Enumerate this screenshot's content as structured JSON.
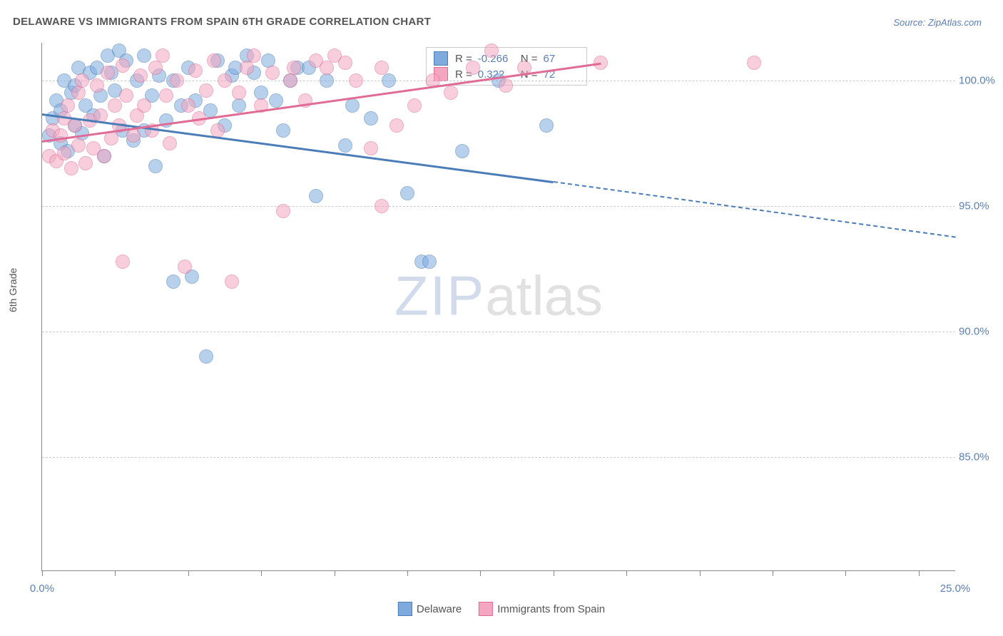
{
  "title": "DELAWARE VS IMMIGRANTS FROM SPAIN 6TH GRADE CORRELATION CHART",
  "source": "Source: ZipAtlas.com",
  "y_axis_label": "6th Grade",
  "watermark_zip": "ZIP",
  "watermark_atlas": "atlas",
  "chart": {
    "type": "scatter",
    "xlim": [
      0,
      25
    ],
    "ylim": [
      80.5,
      101.5
    ],
    "x_ticks": [
      0,
      2,
      4,
      6,
      8,
      10,
      12,
      14,
      16,
      18,
      20,
      22,
      24
    ],
    "x_tick_labels": {
      "0": "0.0%",
      "25": "25.0%"
    },
    "y_gridlines": [
      85,
      90,
      95,
      100
    ],
    "y_tick_labels": {
      "85": "85.0%",
      "90": "90.0%",
      "95": "95.0%",
      "100": "100.0%"
    },
    "grid_color": "#cccccc",
    "background_color": "#ffffff"
  },
  "series": [
    {
      "name": "Delaware",
      "label": "Delaware",
      "fill_color": "#7eaade",
      "stroke_color": "#4a7db8",
      "r_value": "-0.266",
      "n_value": "67",
      "trend": {
        "x1": 0,
        "y1": 98.7,
        "x2": 14,
        "y2": 96.0,
        "x2_dash": 25,
        "y2_dash": 93.8
      },
      "points": [
        [
          0.2,
          97.8
        ],
        [
          0.3,
          98.5
        ],
        [
          0.4,
          99.2
        ],
        [
          0.5,
          97.5
        ],
        [
          0.5,
          98.8
        ],
        [
          0.6,
          100.0
        ],
        [
          0.7,
          97.2
        ],
        [
          0.8,
          99.5
        ],
        [
          0.9,
          98.2
        ],
        [
          0.9,
          99.8
        ],
        [
          1.0,
          100.5
        ],
        [
          1.1,
          97.9
        ],
        [
          1.2,
          99.0
        ],
        [
          1.3,
          100.3
        ],
        [
          1.4,
          98.6
        ],
        [
          1.5,
          100.5
        ],
        [
          1.6,
          99.4
        ],
        [
          1.7,
          97.0
        ],
        [
          1.8,
          101.0
        ],
        [
          1.9,
          100.3
        ],
        [
          2.0,
          99.6
        ],
        [
          2.1,
          101.2
        ],
        [
          2.2,
          98.0
        ],
        [
          2.3,
          100.8
        ],
        [
          2.5,
          97.6
        ],
        [
          2.6,
          100.0
        ],
        [
          2.8,
          101.0
        ],
        [
          2.8,
          98.0
        ],
        [
          3.0,
          99.4
        ],
        [
          3.1,
          96.6
        ],
        [
          3.2,
          100.2
        ],
        [
          3.4,
          98.4
        ],
        [
          3.6,
          92.0
        ],
        [
          3.6,
          100.0
        ],
        [
          3.8,
          99.0
        ],
        [
          4.0,
          100.5
        ],
        [
          4.1,
          92.2
        ],
        [
          4.2,
          99.2
        ],
        [
          4.5,
          89.0
        ],
        [
          4.6,
          98.8
        ],
        [
          4.8,
          100.8
        ],
        [
          5.0,
          98.2
        ],
        [
          5.2,
          100.2
        ],
        [
          5.3,
          100.5
        ],
        [
          5.4,
          99.0
        ],
        [
          5.6,
          101.0
        ],
        [
          5.8,
          100.3
        ],
        [
          6.0,
          99.5
        ],
        [
          6.2,
          100.8
        ],
        [
          6.4,
          99.2
        ],
        [
          6.6,
          98.0
        ],
        [
          6.8,
          100.0
        ],
        [
          7.0,
          100.5
        ],
        [
          7.3,
          100.5
        ],
        [
          7.5,
          95.4
        ],
        [
          7.8,
          100.0
        ],
        [
          8.3,
          97.4
        ],
        [
          8.5,
          99.0
        ],
        [
          9.0,
          98.5
        ],
        [
          9.5,
          100.0
        ],
        [
          10.0,
          95.5
        ],
        [
          10.4,
          92.8
        ],
        [
          10.6,
          92.8
        ],
        [
          11.5,
          97.2
        ],
        [
          12.5,
          100.0
        ],
        [
          13.8,
          98.2
        ]
      ]
    },
    {
      "name": "Immigrants from Spain",
      "label": "Immigrants from Spain",
      "fill_color": "#f4a6c0",
      "stroke_color": "#e06b94",
      "r_value": "0.322",
      "n_value": "72",
      "trend": {
        "x1": 0,
        "y1": 97.6,
        "x2": 15.3,
        "y2": 100.7,
        "x2_dash": null,
        "y2_dash": null
      },
      "points": [
        [
          0.2,
          97.0
        ],
        [
          0.3,
          98.0
        ],
        [
          0.4,
          96.8
        ],
        [
          0.5,
          97.8
        ],
        [
          0.6,
          98.5
        ],
        [
          0.6,
          97.1
        ],
        [
          0.7,
          99.0
        ],
        [
          0.8,
          96.5
        ],
        [
          0.9,
          98.2
        ],
        [
          1.0,
          97.4
        ],
        [
          1.0,
          99.5
        ],
        [
          1.1,
          100.0
        ],
        [
          1.2,
          96.7
        ],
        [
          1.3,
          98.4
        ],
        [
          1.4,
          97.3
        ],
        [
          1.5,
          99.8
        ],
        [
          1.6,
          98.6
        ],
        [
          1.7,
          97.0
        ],
        [
          1.8,
          100.3
        ],
        [
          1.9,
          97.7
        ],
        [
          2.0,
          99.0
        ],
        [
          2.1,
          98.2
        ],
        [
          2.2,
          100.6
        ],
        [
          2.2,
          92.8
        ],
        [
          2.3,
          99.4
        ],
        [
          2.5,
          97.8
        ],
        [
          2.6,
          98.6
        ],
        [
          2.7,
          100.2
        ],
        [
          2.8,
          99.0
        ],
        [
          3.0,
          98.0
        ],
        [
          3.1,
          100.5
        ],
        [
          3.3,
          101.0
        ],
        [
          3.4,
          99.4
        ],
        [
          3.5,
          97.5
        ],
        [
          3.7,
          100.0
        ],
        [
          3.9,
          92.6
        ],
        [
          4.0,
          99.0
        ],
        [
          4.2,
          100.4
        ],
        [
          4.3,
          98.5
        ],
        [
          4.5,
          99.6
        ],
        [
          4.7,
          100.8
        ],
        [
          4.8,
          98.0
        ],
        [
          5.0,
          100.0
        ],
        [
          5.2,
          92.0
        ],
        [
          5.4,
          99.5
        ],
        [
          5.6,
          100.5
        ],
        [
          5.8,
          101.0
        ],
        [
          6.0,
          99.0
        ],
        [
          6.3,
          100.3
        ],
        [
          6.6,
          94.8
        ],
        [
          6.8,
          100.0
        ],
        [
          6.9,
          100.5
        ],
        [
          7.2,
          99.2
        ],
        [
          7.5,
          100.8
        ],
        [
          7.8,
          100.5
        ],
        [
          8.0,
          101.0
        ],
        [
          8.3,
          100.7
        ],
        [
          8.6,
          100.0
        ],
        [
          9.0,
          97.3
        ],
        [
          9.3,
          95.0
        ],
        [
          9.3,
          100.5
        ],
        [
          9.7,
          98.2
        ],
        [
          10.2,
          99.0
        ],
        [
          10.7,
          100.0
        ],
        [
          11.2,
          99.5
        ],
        [
          11.8,
          100.5
        ],
        [
          12.3,
          101.2
        ],
        [
          12.7,
          99.8
        ],
        [
          13.2,
          100.5
        ],
        [
          15.3,
          100.7
        ],
        [
          19.5,
          100.7
        ]
      ]
    }
  ],
  "legend_bottom": [
    {
      "label": "Delaware",
      "fill": "#7eaade",
      "stroke": "#4a7db8"
    },
    {
      "label": "Immigrants from Spain",
      "fill": "#f4a6c0",
      "stroke": "#e06b94"
    }
  ]
}
